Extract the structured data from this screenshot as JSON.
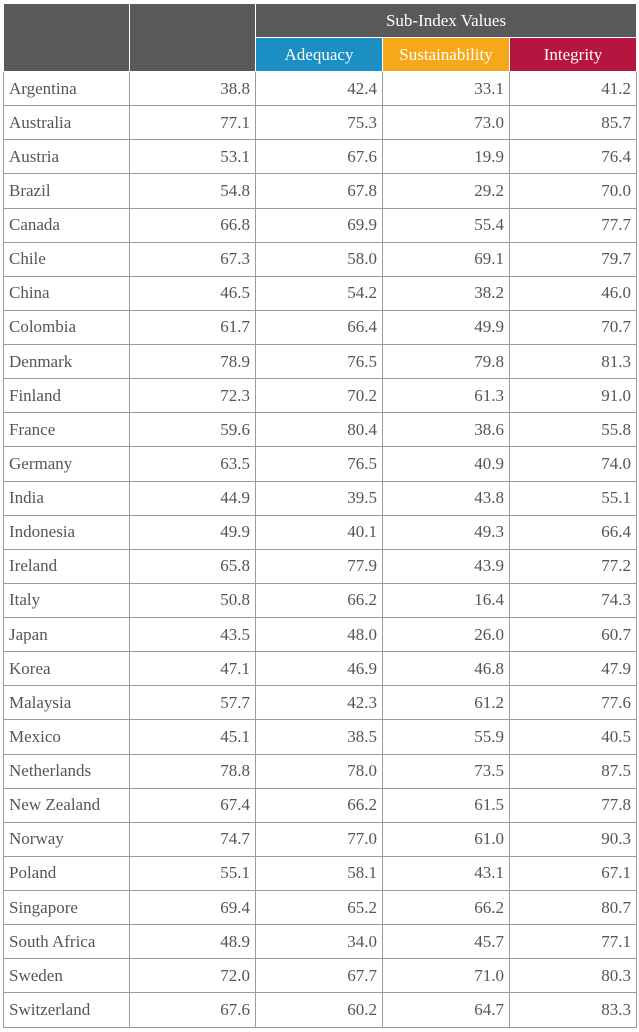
{
  "header": {
    "group": "Sub-Index Values",
    "columns": [
      "Adequacy",
      "Sustainability",
      "Integrity"
    ]
  },
  "table": {
    "rows": [
      [
        "Argentina",
        "38.8",
        "42.4",
        "33.1",
        "41.2"
      ],
      [
        "Australia",
        "77.1",
        "75.3",
        "73.0",
        "85.7"
      ],
      [
        "Austria",
        "53.1",
        "67.6",
        "19.9",
        "76.4"
      ],
      [
        "Brazil",
        "54.8",
        "67.8",
        "29.2",
        "70.0"
      ],
      [
        "Canada",
        "66.8",
        "69.9",
        "55.4",
        "77.7"
      ],
      [
        "Chile",
        "67.3",
        "58.0",
        "69.1",
        "79.7"
      ],
      [
        "China",
        "46.5",
        "54.2",
        "38.2",
        "46.0"
      ],
      [
        "Colombia",
        "61.7",
        "66.4",
        "49.9",
        "70.7"
      ],
      [
        "Denmark",
        "78.9",
        "76.5",
        "79.8",
        "81.3"
      ],
      [
        "Finland",
        "72.3",
        "70.2",
        "61.3",
        "91.0"
      ],
      [
        "France",
        "59.6",
        "80.4",
        "38.6",
        "55.8"
      ],
      [
        "Germany",
        "63.5",
        "76.5",
        "40.9",
        "74.0"
      ],
      [
        "India",
        "44.9",
        "39.5",
        "43.8",
        "55.1"
      ],
      [
        "Indonesia",
        "49.9",
        "40.1",
        "49.3",
        "66.4"
      ],
      [
        "Ireland",
        "65.8",
        "77.9",
        "43.9",
        "77.2"
      ],
      [
        "Italy",
        "50.8",
        "66.2",
        "16.4",
        "74.3"
      ],
      [
        "Japan",
        "43.5",
        "48.0",
        "26.0",
        "60.7"
      ],
      [
        "Korea",
        "47.1",
        "46.9",
        "46.8",
        "47.9"
      ],
      [
        "Malaysia",
        "57.7",
        "42.3",
        "61.2",
        "77.6"
      ],
      [
        "Mexico",
        "45.1",
        "38.5",
        "55.9",
        "40.5"
      ],
      [
        "Netherlands",
        "78.8",
        "78.0",
        "73.5",
        "87.5"
      ],
      [
        "New Zealand",
        "67.4",
        "66.2",
        "61.5",
        "77.8"
      ],
      [
        "Norway",
        "74.7",
        "77.0",
        "61.0",
        "90.3"
      ],
      [
        "Poland",
        "55.1",
        "58.1",
        "43.1",
        "67.1"
      ],
      [
        "Singapore",
        "69.4",
        "65.2",
        "66.2",
        "80.7"
      ],
      [
        "South Africa",
        "48.9",
        "34.0",
        "45.7",
        "77.1"
      ],
      [
        "Sweden",
        "72.0",
        "67.7",
        "71.0",
        "80.3"
      ],
      [
        "Switzerland",
        "67.6",
        "60.2",
        "64.7",
        "83.3"
      ]
    ]
  }
}
